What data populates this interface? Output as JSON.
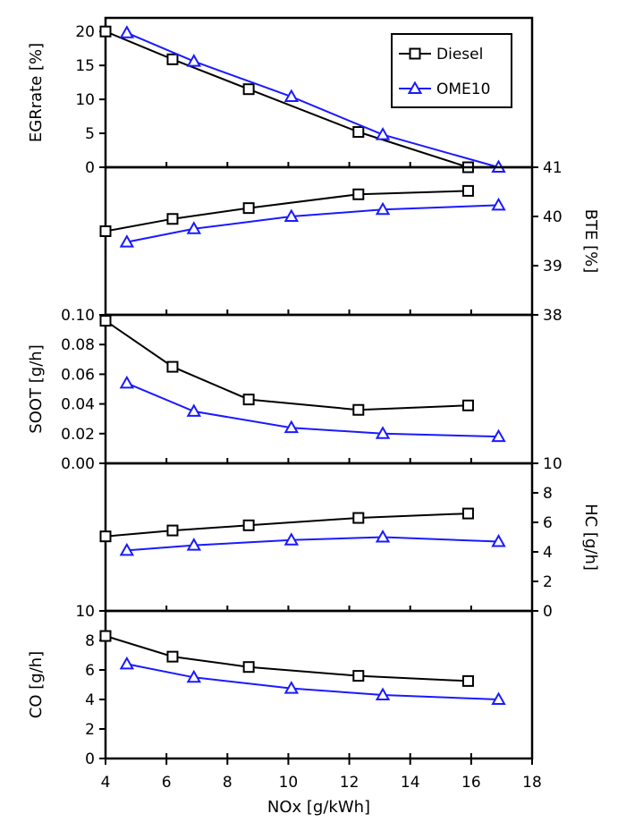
{
  "chart_data": {
    "type": "line",
    "x_axis": {
      "label": "NOx [g/kWh]",
      "range": [
        4,
        18
      ],
      "ticks": [
        4,
        6,
        8,
        10,
        12,
        14,
        16,
        18
      ],
      "tick_labels": [
        "4",
        "6",
        "8",
        "10",
        "12",
        "14",
        "16",
        "18"
      ]
    },
    "legend": {
      "placement": "top-right of top panel",
      "entries": [
        {
          "name": "Diesel",
          "color": "#000000",
          "marker": "square"
        },
        {
          "name": "OME10",
          "color": "#1a1aff",
          "marker": "triangle"
        }
      ]
    },
    "series_colors": {
      "Diesel": "#000000",
      "OME10": "#1a1aff"
    },
    "panels": [
      {
        "id": "egr",
        "ylabel": "EGRrate [%]",
        "y_side": "left",
        "ylim": [
          0,
          22
        ],
        "ticks": [
          0,
          5,
          10,
          15,
          20
        ],
        "tick_labels": [
          "0",
          "5",
          "10",
          "15",
          "20"
        ],
        "series": [
          {
            "name": "Diesel",
            "x": [
              4.0,
              6.2,
              8.7,
              12.3,
              15.9
            ],
            "y": [
              20.0,
              15.9,
              11.5,
              5.2,
              0.0
            ]
          },
          {
            "name": "OME10",
            "x": [
              4.7,
              6.9,
              10.1,
              13.1,
              16.9
            ],
            "y": [
              19.8,
              15.6,
              10.4,
              4.8,
              0.0
            ]
          }
        ]
      },
      {
        "id": "bte",
        "ylabel": "BTE [%]",
        "y_side": "right",
        "ylim": [
          38,
          41
        ],
        "ticks": [
          38,
          39,
          40,
          41
        ],
        "tick_labels": [
          "38",
          "39",
          "40",
          "41"
        ],
        "series": [
          {
            "name": "Diesel",
            "x": [
              4.0,
              6.2,
              8.7,
              12.3,
              15.9
            ],
            "y": [
              39.7,
              39.95,
              40.17,
              40.45,
              40.52
            ]
          },
          {
            "name": "OME10",
            "x": [
              4.7,
              6.9,
              10.1,
              13.1,
              16.9
            ],
            "y": [
              39.48,
              39.75,
              40.0,
              40.14,
              40.23
            ]
          }
        ]
      },
      {
        "id": "soot",
        "ylabel": "SOOT [g/h]",
        "y_side": "left",
        "ylim": [
          0,
          0.1
        ],
        "ticks": [
          0,
          0.02,
          0.04,
          0.06,
          0.08,
          0.1
        ],
        "tick_labels": [
          "0.00",
          "0.02",
          "0.04",
          "0.06",
          "0.08",
          "0.10"
        ],
        "series": [
          {
            "name": "Diesel",
            "x": [
              4.0,
              6.2,
              8.7,
              12.3,
              15.9
            ],
            "y": [
              0.096,
              0.065,
              0.043,
              0.036,
              0.039
            ]
          },
          {
            "name": "OME10",
            "x": [
              4.7,
              6.9,
              10.1,
              13.1,
              16.9
            ],
            "y": [
              0.054,
              0.035,
              0.024,
              0.02,
              0.018
            ]
          }
        ]
      },
      {
        "id": "hc",
        "ylabel": "HC [g/h]",
        "y_side": "right",
        "ylim": [
          0,
          10
        ],
        "ticks": [
          0,
          2,
          4,
          6,
          8,
          10
        ],
        "tick_labels": [
          "0",
          "2",
          "4",
          "6",
          "8",
          "10"
        ],
        "series": [
          {
            "name": "Diesel",
            "x": [
              4.0,
              6.2,
              8.7,
              12.3,
              15.9
            ],
            "y": [
              5.05,
              5.45,
              5.8,
              6.3,
              6.6
            ]
          },
          {
            "name": "OME10",
            "x": [
              4.7,
              6.9,
              10.1,
              13.1,
              16.9
            ],
            "y": [
              4.1,
              4.45,
              4.8,
              5.0,
              4.7
            ]
          }
        ]
      },
      {
        "id": "co",
        "ylabel": "CO [g/h]",
        "y_side": "left",
        "ylim": [
          0,
          10
        ],
        "ticks": [
          0,
          2,
          4,
          6,
          8,
          10
        ],
        "tick_labels": [
          "0",
          "2",
          "4",
          "6",
          "8",
          "10"
        ],
        "series": [
          {
            "name": "Diesel",
            "x": [
              4.0,
              6.2,
              8.7,
              12.3,
              15.9
            ],
            "y": [
              8.3,
              6.9,
              6.2,
              5.6,
              5.25
            ]
          },
          {
            "name": "OME10",
            "x": [
              4.7,
              6.9,
              10.1,
              13.1,
              16.9
            ],
            "y": [
              6.4,
              5.5,
              4.75,
              4.3,
              4.0
            ]
          }
        ]
      }
    ]
  }
}
